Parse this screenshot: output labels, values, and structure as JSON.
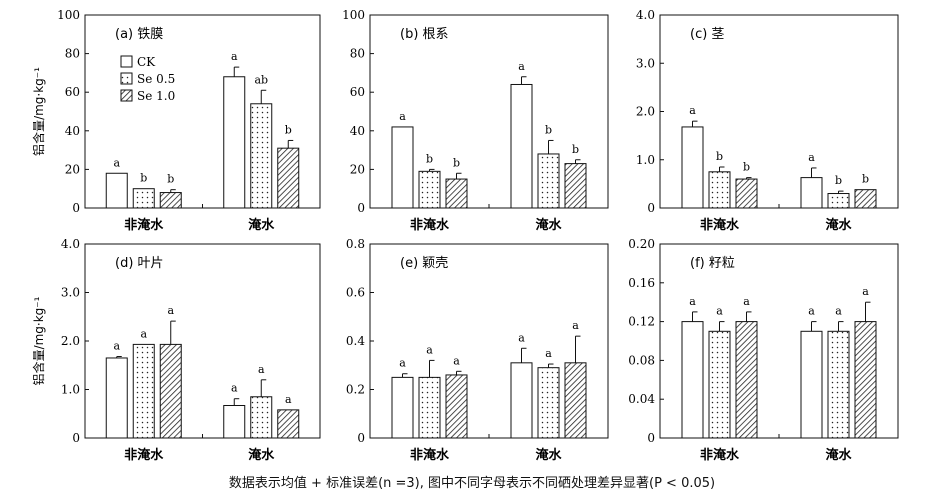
{
  "caption": "数据表示均值 + 标准误差(n =3), 图中不同字母表示不同硒处理差异显著(P < 0.05)",
  "legend": [
    "CK",
    "Se 0.5",
    "Se 1.0"
  ],
  "ylabel": "铝含量/mg·kg⁻¹",
  "chart_data": [
    {
      "type": "bar",
      "title": "(a) 铁膜",
      "categories": [
        "非淹水",
        "淹水"
      ],
      "ylim": [
        0,
        100
      ],
      "yticks": [
        "0",
        "20",
        "40",
        "60",
        "80",
        "100"
      ],
      "ylabel": "铝含量/mg·kg⁻¹",
      "legend": "top-left",
      "series": [
        {
          "name": "CK",
          "values": [
            18,
            68
          ],
          "errors": [
            0,
            5
          ],
          "letters": [
            "a",
            "a"
          ]
        },
        {
          "name": "Se 0.5",
          "values": [
            10,
            54
          ],
          "errors": [
            0,
            7
          ],
          "letters": [
            "b",
            "ab"
          ]
        },
        {
          "name": "Se 1.0",
          "values": [
            8,
            31
          ],
          "errors": [
            1.5,
            4
          ],
          "letters": [
            "b",
            "b"
          ]
        }
      ]
    },
    {
      "type": "bar",
      "title": "(b) 根系",
      "categories": [
        "非淹水",
        "淹水"
      ],
      "ylim": [
        0,
        100
      ],
      "yticks": [
        "0",
        "20",
        "40",
        "60",
        "80",
        "100"
      ],
      "ylabel": "",
      "series": [
        {
          "name": "CK",
          "values": [
            42,
            64
          ],
          "errors": [
            0,
            4
          ],
          "letters": [
            "a",
            "a"
          ]
        },
        {
          "name": "Se 0.5",
          "values": [
            19,
            28
          ],
          "errors": [
            1,
            7
          ],
          "letters": [
            "b",
            "b"
          ]
        },
        {
          "name": "Se 1.0",
          "values": [
            15,
            23
          ],
          "errors": [
            3,
            2
          ],
          "letters": [
            "b",
            "b"
          ]
        }
      ]
    },
    {
      "type": "bar",
      "title": "(c) 茎",
      "categories": [
        "非淹水",
        "淹水"
      ],
      "ylim": [
        0,
        4
      ],
      "yticks": [
        "0",
        "1.0",
        "2.0",
        "3.0",
        "4.0"
      ],
      "ylabel": "",
      "series": [
        {
          "name": "CK",
          "values": [
            1.68,
            0.63
          ],
          "errors": [
            0.12,
            0.2
          ],
          "letters": [
            "a",
            "a"
          ]
        },
        {
          "name": "Se 0.5",
          "values": [
            0.75,
            0.3
          ],
          "errors": [
            0.1,
            0.05
          ],
          "letters": [
            "b",
            "b"
          ]
        },
        {
          "name": "Se 1.0",
          "values": [
            0.6,
            0.38
          ],
          "errors": [
            0.03,
            0
          ],
          "letters": [
            "b",
            "b"
          ]
        }
      ]
    },
    {
      "type": "bar",
      "title": "(d) 叶片",
      "categories": [
        "非淹水",
        "淹水"
      ],
      "ylim": [
        0,
        4
      ],
      "yticks": [
        "0",
        "1.0",
        "2.0",
        "3.0",
        "4.0"
      ],
      "ylabel": "铝含量/mg·kg⁻¹",
      "series": [
        {
          "name": "CK",
          "values": [
            1.65,
            0.67
          ],
          "errors": [
            0.03,
            0.14
          ],
          "letters": [
            "a",
            "a"
          ]
        },
        {
          "name": "Se 0.5",
          "values": [
            1.93,
            0.85
          ],
          "errors": [
            0,
            0.35
          ],
          "letters": [
            "a",
            "a"
          ]
        },
        {
          "name": "Se 1.0",
          "values": [
            1.93,
            0.58
          ],
          "errors": [
            0.48,
            0
          ],
          "letters": [
            "a",
            "a"
          ]
        }
      ]
    },
    {
      "type": "bar",
      "title": "(e) 颖壳",
      "categories": [
        "非淹水",
        "淹水"
      ],
      "ylim": [
        0,
        0.8
      ],
      "yticks": [
        "0",
        "0.2",
        "0.4",
        "0.6",
        "0.8"
      ],
      "ylabel": "",
      "series": [
        {
          "name": "CK",
          "values": [
            0.25,
            0.31
          ],
          "errors": [
            0.015,
            0.06
          ],
          "letters": [
            "a",
            "a"
          ]
        },
        {
          "name": "Se 0.5",
          "values": [
            0.25,
            0.29
          ],
          "errors": [
            0.07,
            0.015
          ],
          "letters": [
            "a",
            "a"
          ]
        },
        {
          "name": "Se 1.0",
          "values": [
            0.26,
            0.31
          ],
          "errors": [
            0.015,
            0.11
          ],
          "letters": [
            "a",
            "a"
          ]
        }
      ]
    },
    {
      "type": "bar",
      "title": "(f) 籽粒",
      "categories": [
        "非淹水",
        "淹水"
      ],
      "ylim": [
        0,
        0.2
      ],
      "yticks": [
        "0",
        "0.04",
        "0.08",
        "0.12",
        "0.16",
        "0.20"
      ],
      "ylabel": "",
      "series": [
        {
          "name": "CK",
          "values": [
            0.12,
            0.11
          ],
          "errors": [
            0.01,
            0.01
          ],
          "letters": [
            "a",
            "a"
          ]
        },
        {
          "name": "Se 0.5",
          "values": [
            0.11,
            0.11
          ],
          "errors": [
            0.01,
            0.01
          ],
          "letters": [
            "a",
            "a"
          ]
        },
        {
          "name": "Se 1.0",
          "values": [
            0.12,
            0.12
          ],
          "errors": [
            0.01,
            0.02
          ],
          "letters": [
            "a",
            "a"
          ]
        }
      ]
    }
  ]
}
